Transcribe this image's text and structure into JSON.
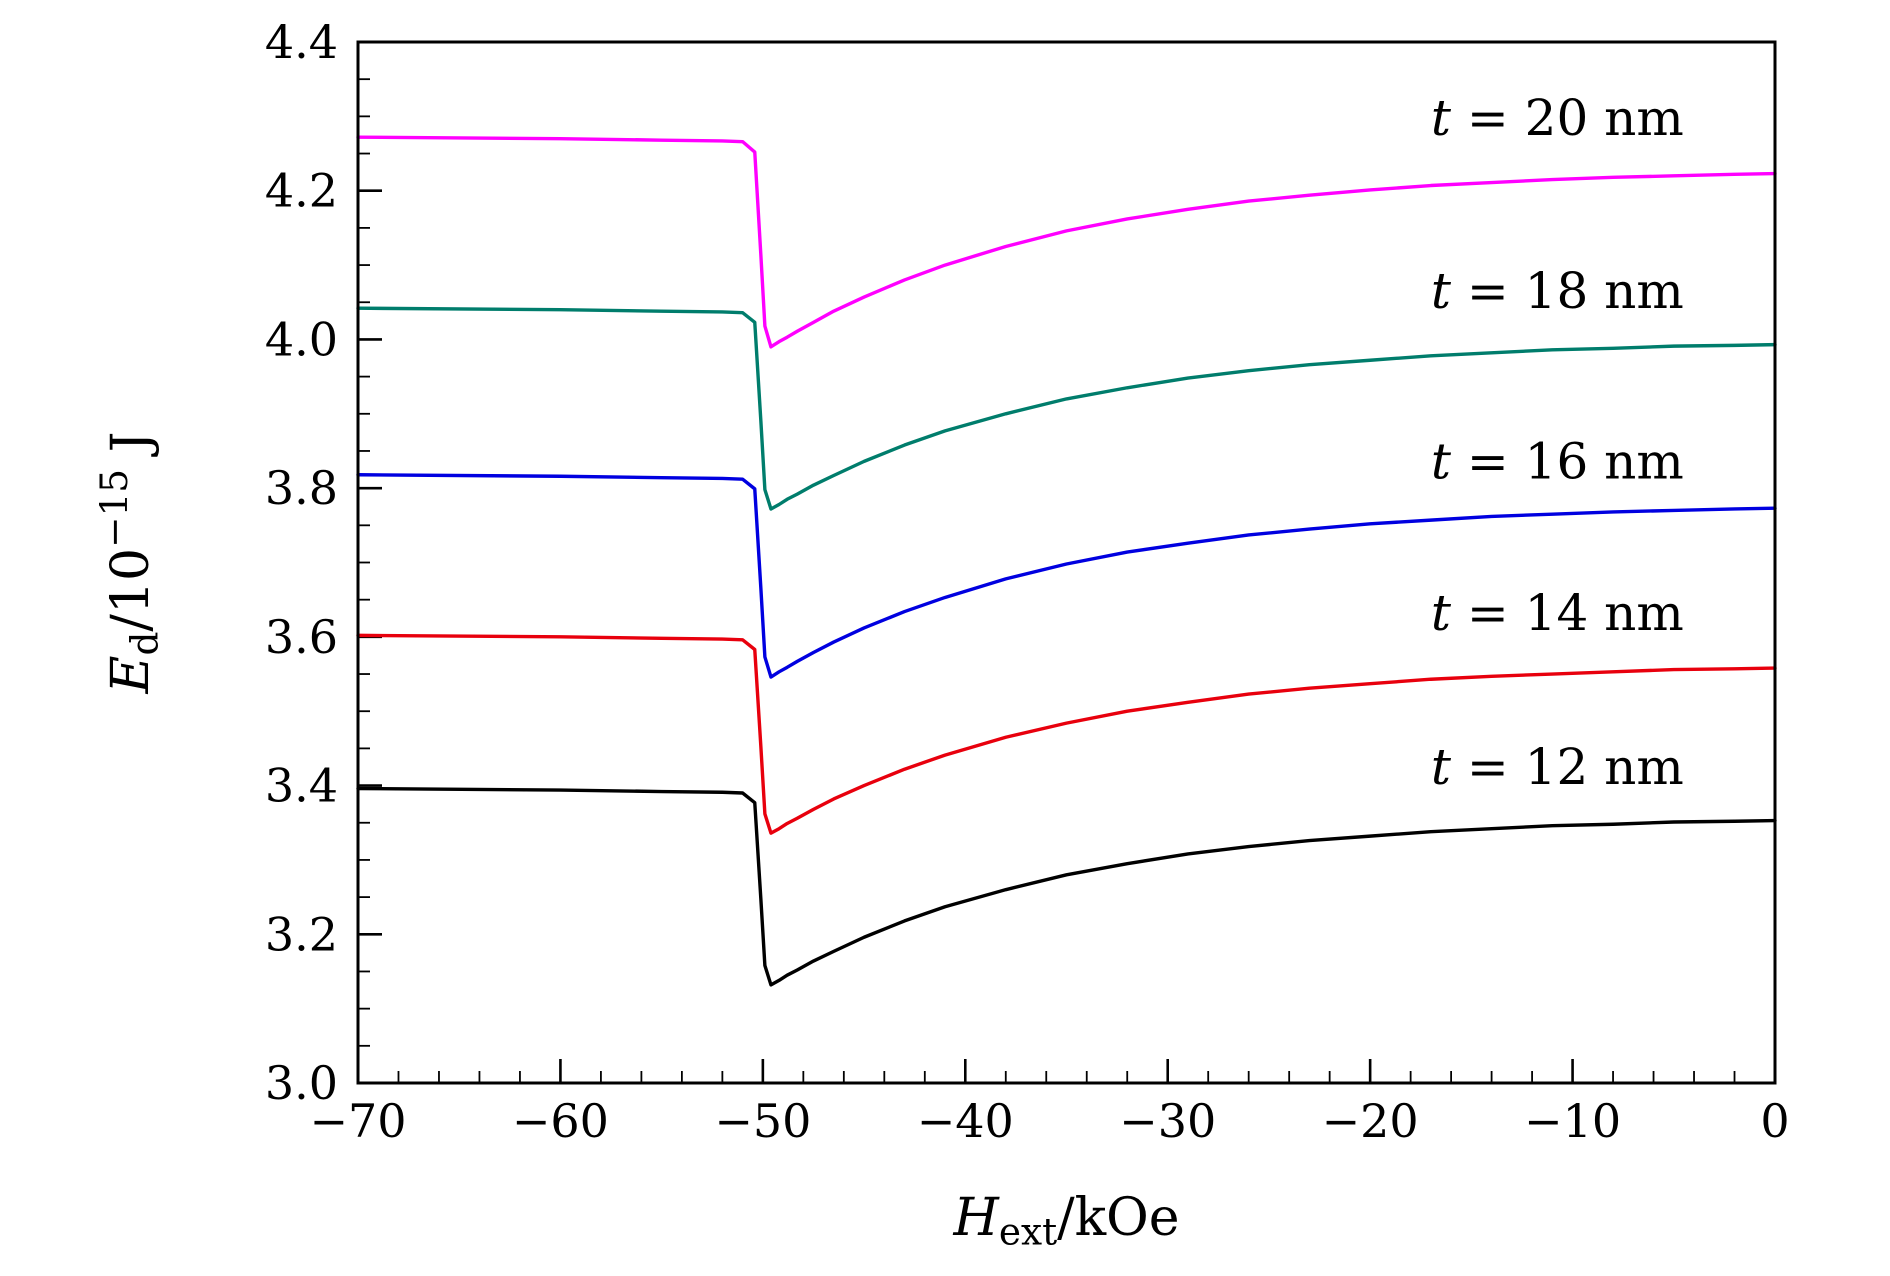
{
  "chart_data": {
    "type": "line",
    "title": "",
    "grid": false,
    "legend_position": "inline-annotations",
    "xlabel_parts": [
      {
        "t": "H",
        "style": "italic"
      },
      {
        "t": "ext",
        "style": "sub"
      },
      {
        "t": "/kOe",
        "style": "normal"
      }
    ],
    "ylabel_parts": [
      {
        "t": "E",
        "style": "italic"
      },
      {
        "t": "d",
        "style": "sub"
      },
      {
        "t": "/10",
        "style": "normal"
      },
      {
        "t": "−15",
        "style": "sup"
      },
      {
        "t": " J",
        "style": "normal"
      }
    ],
    "xlim": [
      -70,
      0
    ],
    "ylim": [
      3.0,
      4.4
    ],
    "x_major_ticks": [
      -70,
      -60,
      -50,
      -40,
      -30,
      -20,
      -10,
      0
    ],
    "x_tick_labels": [
      "−70",
      "−60",
      "−50",
      "−40",
      "−30",
      "−20",
      "−10",
      "0"
    ],
    "y_major_ticks": [
      3.0,
      3.2,
      3.4,
      3.6,
      3.8,
      4.0,
      4.2,
      4.4
    ],
    "y_tick_labels": [
      "3.0",
      "3.2",
      "3.4",
      "3.6",
      "3.8",
      "4.0",
      "4.2",
      "4.4"
    ],
    "x_minor_step": 2,
    "y_minor_step": 0.05,
    "x": [
      -70,
      -60,
      -55,
      -52,
      -51,
      -50.4,
      -50.1,
      -49.9,
      -49.6,
      -49.2,
      -48.8,
      -48.3,
      -47.5,
      -46.5,
      -45,
      -43,
      -41,
      -38,
      -35,
      -32,
      -29,
      -26,
      -23,
      -20,
      -17,
      -14,
      -11,
      -8,
      -5,
      -2,
      0
    ],
    "series": [
      {
        "name": "t = 12 nm",
        "thickness_nm": 12,
        "color": "#000000",
        "values": [
          3.396,
          3.394,
          3.392,
          3.391,
          3.39,
          3.377,
          3.248,
          3.158,
          3.132,
          3.138,
          3.145,
          3.152,
          3.164,
          3.177,
          3.196,
          3.218,
          3.237,
          3.26,
          3.28,
          3.295,
          3.308,
          3.318,
          3.326,
          3.332,
          3.338,
          3.342,
          3.346,
          3.348,
          3.351,
          3.352,
          3.353
        ]
      },
      {
        "name": "t = 14 nm",
        "thickness_nm": 14,
        "color": "#e8000d",
        "values": [
          3.602,
          3.6,
          3.598,
          3.597,
          3.596,
          3.583,
          3.453,
          3.362,
          3.336,
          3.342,
          3.349,
          3.356,
          3.368,
          3.382,
          3.4,
          3.422,
          3.441,
          3.465,
          3.484,
          3.5,
          3.512,
          3.523,
          3.531,
          3.537,
          3.543,
          3.547,
          3.55,
          3.553,
          3.556,
          3.557,
          3.558
        ]
      },
      {
        "name": "t = 16 nm",
        "thickness_nm": 16,
        "color": "#0000e0",
        "values": [
          3.818,
          3.816,
          3.814,
          3.813,
          3.812,
          3.799,
          3.666,
          3.573,
          3.546,
          3.553,
          3.559,
          3.567,
          3.579,
          3.593,
          3.612,
          3.634,
          3.653,
          3.678,
          3.698,
          3.714,
          3.726,
          3.737,
          3.745,
          3.752,
          3.757,
          3.762,
          3.765,
          3.768,
          3.77,
          3.772,
          3.773
        ]
      },
      {
        "name": "t = 18 nm",
        "thickness_nm": 18,
        "color": "#007d6c",
        "values": [
          4.042,
          4.04,
          4.038,
          4.037,
          4.036,
          4.023,
          3.891,
          3.798,
          3.772,
          3.778,
          3.785,
          3.792,
          3.804,
          3.817,
          3.836,
          3.858,
          3.877,
          3.9,
          3.92,
          3.935,
          3.948,
          3.958,
          3.966,
          3.972,
          3.978,
          3.982,
          3.986,
          3.988,
          3.991,
          3.992,
          3.993
        ]
      },
      {
        "name": "t = 20 nm",
        "thickness_nm": 20,
        "color": "#ff00ff",
        "values": [
          4.272,
          4.27,
          4.268,
          4.267,
          4.266,
          4.252,
          4.114,
          4.018,
          3.99,
          3.997,
          4.003,
          4.011,
          4.023,
          4.038,
          4.057,
          4.08,
          4.1,
          4.125,
          4.146,
          4.162,
          4.175,
          4.186,
          4.194,
          4.201,
          4.207,
          4.211,
          4.215,
          4.218,
          4.22,
          4.222,
          4.223
        ]
      }
    ],
    "annotations": [
      {
        "x": -17,
        "y": 4.275,
        "color": "#000000",
        "label_parts": [
          {
            "t": "t",
            "style": "italic"
          },
          {
            "t": " = 20 nm",
            "style": "normal"
          }
        ]
      },
      {
        "x": -17,
        "y": 4.042,
        "color": "#000000",
        "label_parts": [
          {
            "t": "t",
            "style": "italic"
          },
          {
            "t": " = 18 nm",
            "style": "normal"
          }
        ]
      },
      {
        "x": -17,
        "y": 3.813,
        "color": "#000000",
        "label_parts": [
          {
            "t": "t",
            "style": "italic"
          },
          {
            "t": " = 16 nm",
            "style": "normal"
          }
        ]
      },
      {
        "x": -17,
        "y": 3.609,
        "color": "#000000",
        "label_parts": [
          {
            "t": "t",
            "style": "italic"
          },
          {
            "t": " = 14 nm",
            "style": "normal"
          }
        ]
      },
      {
        "x": -17,
        "y": 3.402,
        "color": "#000000",
        "label_parts": [
          {
            "t": "t",
            "style": "italic"
          },
          {
            "t": " = 12 nm",
            "style": "normal"
          }
        ]
      }
    ]
  }
}
